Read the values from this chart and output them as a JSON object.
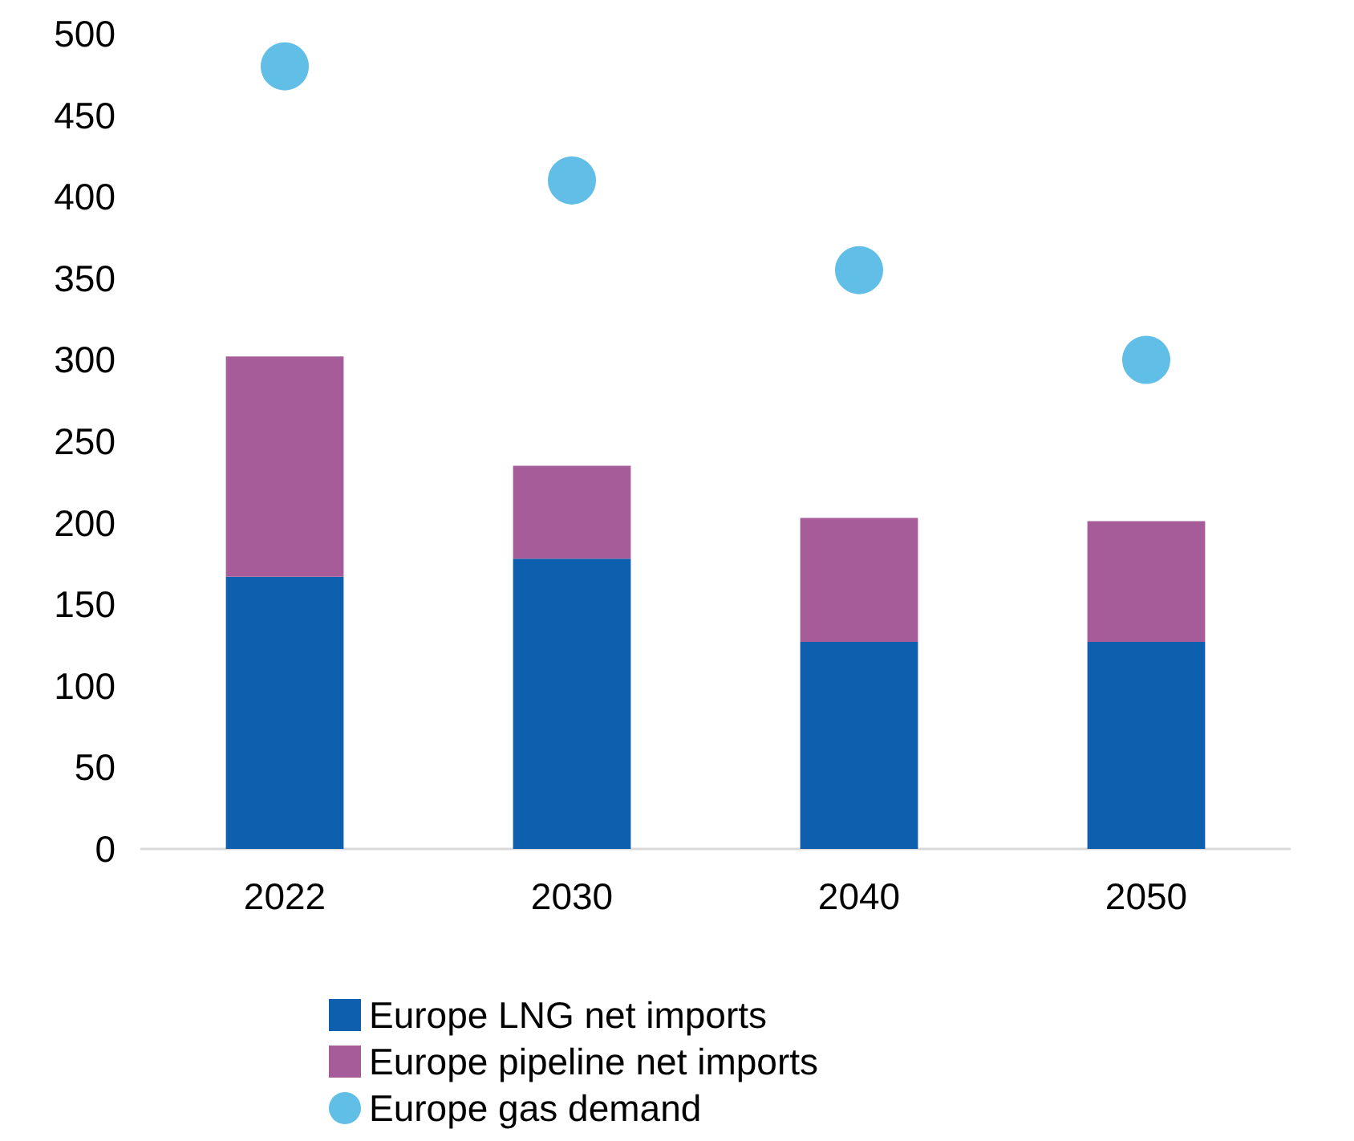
{
  "chart_data": {
    "type": "bar",
    "stacked": true,
    "categories": [
      "2022",
      "2030",
      "2040",
      "2050"
    ],
    "series": [
      {
        "name": "Europe LNG net imports",
        "color": "#0e5fad",
        "values": [
          167,
          178,
          127,
          127
        ]
      },
      {
        "name": "Europe pipeline net imports",
        "color": "#a65c98",
        "values": [
          135,
          57,
          76,
          74
        ]
      },
      {
        "name": "Europe gas demand",
        "type": "scatter",
        "color": "#3aaee0",
        "values": [
          480,
          410,
          355,
          300
        ]
      }
    ],
    "ylim": [
      0,
      500
    ],
    "yticks": [
      0,
      50,
      100,
      150,
      200,
      250,
      300,
      350,
      400,
      450,
      500
    ],
    "grid": false,
    "legend": "bottom",
    "marker": "circle"
  }
}
